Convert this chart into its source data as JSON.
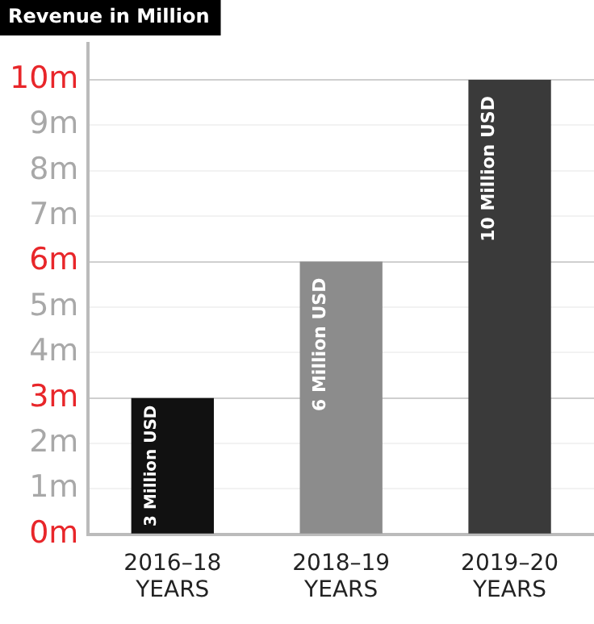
{
  "chart_data": {
    "type": "bar",
    "title": "Revenue in Million",
    "categories": [
      "2016–18\nYEARS",
      "2018–19\nYEARS",
      "2019–20\nYEARS"
    ],
    "values": [
      3,
      6,
      10
    ],
    "colors": [
      "#111111",
      "#8c8c8c",
      "#3a3a3a"
    ],
    "value_labels": [
      "3 Million USD",
      "6 Million USD",
      "10 Million USD"
    ],
    "ylim": [
      0,
      10.8
    ],
    "yticks": [
      {
        "value": 0,
        "label": "0m"
      },
      {
        "value": 1,
        "label": "1m"
      },
      {
        "value": 2,
        "label": "2m"
      },
      {
        "value": 3,
        "label": "3m"
      },
      {
        "value": 4,
        "label": "4m"
      },
      {
        "value": 5,
        "label": "5m"
      },
      {
        "value": 6,
        "label": "6m"
      },
      {
        "value": 7,
        "label": "7m"
      },
      {
        "value": 8,
        "label": "8m"
      },
      {
        "value": 9,
        "label": "9m"
      },
      {
        "value": 10,
        "label": "10m"
      }
    ],
    "grid": "y",
    "legend": false
  }
}
